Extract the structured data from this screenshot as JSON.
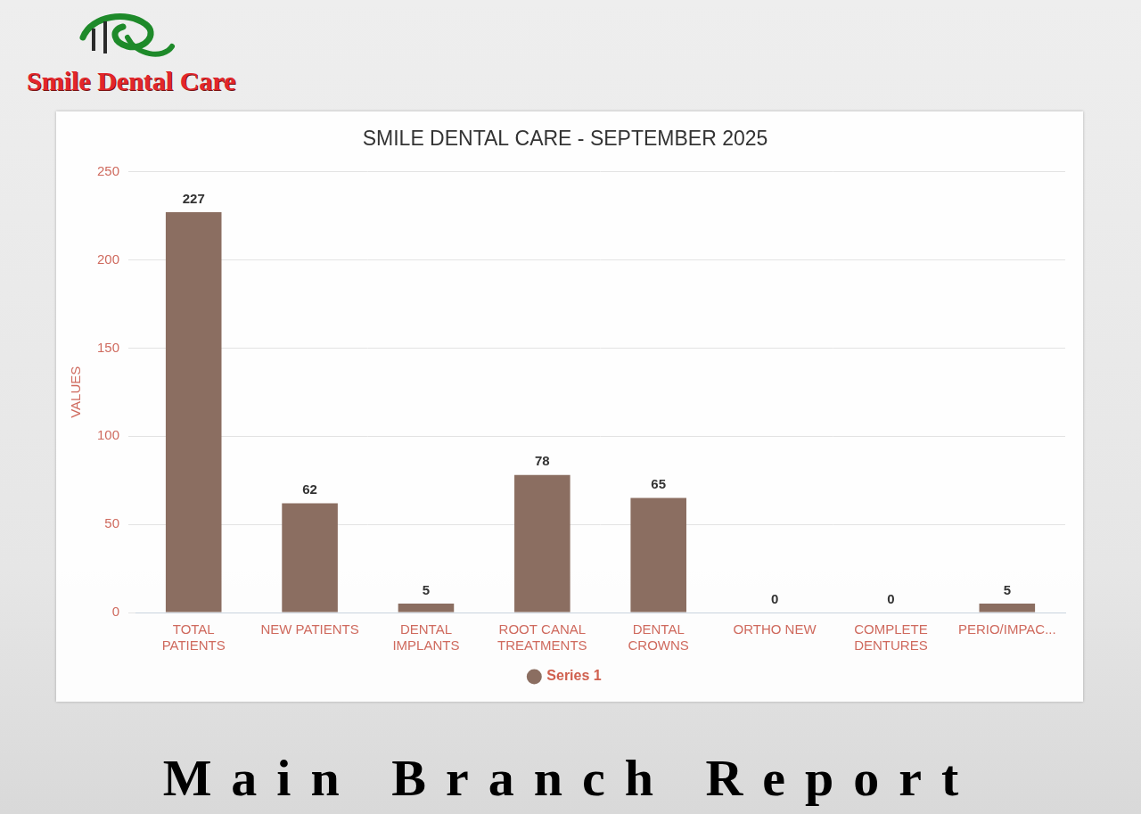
{
  "chart_data": {
    "type": "bar",
    "title": "SMILE DENTAL CARE - SEPTEMBER 2025",
    "y_label": "VALUES",
    "categories": [
      "TOTAL PATIENTS",
      "NEW PATIENTS",
      "DENTAL IMPLANTS",
      "ROOT CANAL TREATMENTS",
      "DENTAL CROWNS",
      "ORTHO NEW",
      "COMPLETE DENTURES",
      "PERIO/IMPAC..."
    ],
    "series": [
      {
        "name": "Series 1",
        "color": "#8b6e61",
        "values": [
          227,
          62,
          5,
          78,
          65,
          0,
          0,
          5
        ]
      }
    ],
    "ylim": [
      0,
      250
    ],
    "yticks": [
      0,
      50,
      100,
      150,
      200,
      250
    ],
    "grid": true,
    "legend": "bottom",
    "data_labels": true
  },
  "header": {
    "logo_text": "Smile Dental Care"
  },
  "footer": {
    "text": "Main Branch Report"
  }
}
